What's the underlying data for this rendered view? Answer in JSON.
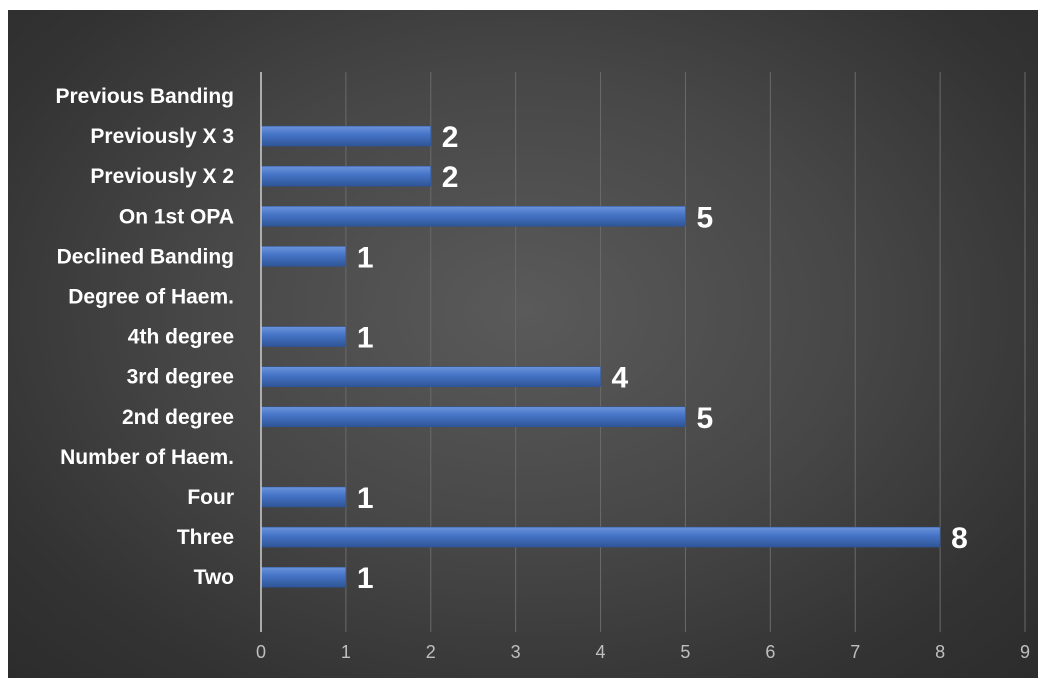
{
  "chart_data": {
    "type": "bar",
    "orientation": "horizontal",
    "categories": [
      "Previous Banding",
      "Previously X 3",
      "Previously X 2",
      "On 1st OPA",
      "Declined Banding",
      "Degree of Haem.",
      "4th degree",
      "3rd degree",
      "2nd degree",
      "Number of Haem.",
      "Four",
      "Three",
      "Two"
    ],
    "values": [
      null,
      2,
      2,
      5,
      1,
      null,
      1,
      4,
      5,
      null,
      1,
      8,
      1
    ],
    "xlim": [
      0,
      9
    ],
    "xticks": [
      "0",
      "1",
      "2",
      "3",
      "4",
      "5",
      "6",
      "7",
      "8",
      "9"
    ],
    "title": "",
    "xlabel": "",
    "ylabel": "",
    "grid": "vertical",
    "legend": "none",
    "data_labels": true,
    "colors": {
      "bar": "#4472c4",
      "bar_dark": "#2f5597",
      "background": "#404040",
      "text": "#ffffff",
      "tick_text": "#bfbfbf"
    }
  }
}
